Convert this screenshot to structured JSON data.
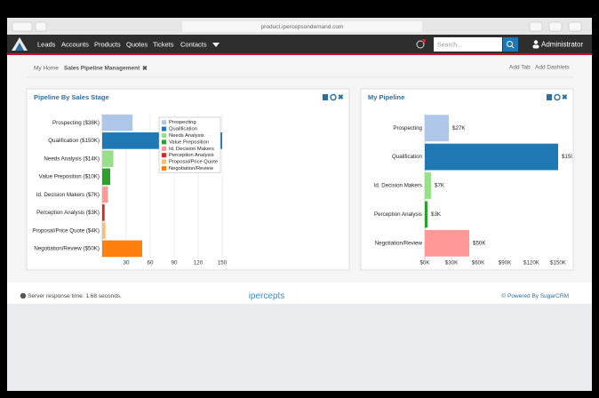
{
  "browser": {
    "url": "product.ipercepsondemand.com"
  },
  "nav": {
    "items": [
      "Leads",
      "Accounts",
      "Products",
      "Quotes",
      "Tickets",
      "Contacts"
    ],
    "search_placeholder": "Search...",
    "user": "Administrator"
  },
  "breadcrumb": {
    "home": "My Home",
    "current": "Sales Pipeline Management",
    "actions": [
      "Add Tab",
      "Add Dashlets"
    ]
  },
  "chart_data": [
    {
      "type": "bar",
      "orientation": "horizontal",
      "title": "Pipeline By Sales Stage",
      "categories": [
        "Prospecting ($38K)",
        "Qualification ($150K)",
        "Needs Analysis ($14K)",
        "Value Preposition ($10K)",
        "Id. Decision Makers ($7K)",
        "Perception Analysis ($3K)",
        "Proposal/Price Quote ($4K)",
        "Negotiation/Review ($50K)"
      ],
      "values": [
        38,
        150,
        14,
        10,
        7,
        3,
        4,
        50
      ],
      "colors": [
        "#aec7e8",
        "#1f77b4",
        "#98df8a",
        "#2ca02c",
        "#ff9896",
        "#d62728",
        "#ffbb78",
        "#ff7f0e"
      ],
      "legend": [
        "Prospecting",
        "Qualification",
        "Needs Analysis",
        "Value Preposition",
        "Id. Decision Makers",
        "Perception Analysis",
        "Proposal/Price Quote",
        "Negotiation/Review"
      ],
      "legend_position": "top-right",
      "xlim": [
        0,
        150
      ],
      "xticks": [
        30,
        60,
        90,
        120,
        150
      ],
      "grid": true
    },
    {
      "type": "bar",
      "orientation": "horizontal",
      "title": "My Pipeline",
      "categories": [
        "Prospecting",
        "Qualification",
        "Id. Decision Makers",
        "Perception Analysis",
        "Negotiation/Review"
      ],
      "values": [
        27,
        150,
        7,
        3,
        50
      ],
      "value_labels": [
        "$27K",
        "$150K",
        "$7K",
        "$3K",
        "$50K"
      ],
      "colors": [
        "#aec7e8",
        "#1f77b4",
        "#98df8a",
        "#2ca02c",
        "#ff9896"
      ],
      "xlim": [
        0,
        150
      ],
      "xticks": [
        {
          "value": 0,
          "label": "$0K"
        },
        {
          "value": 30,
          "label": "$30K"
        },
        {
          "value": 60,
          "label": "$60K"
        },
        {
          "value": 90,
          "label": "$90K"
        },
        {
          "value": 120,
          "label": "$120K"
        },
        {
          "value": 150,
          "label": "$150K"
        }
      ],
      "grid": false
    }
  ],
  "footer": {
    "server_time": "Server response time: 1.68 seconds.",
    "brand": "ipercepts",
    "powered": "© Powered By SugarCRM"
  }
}
